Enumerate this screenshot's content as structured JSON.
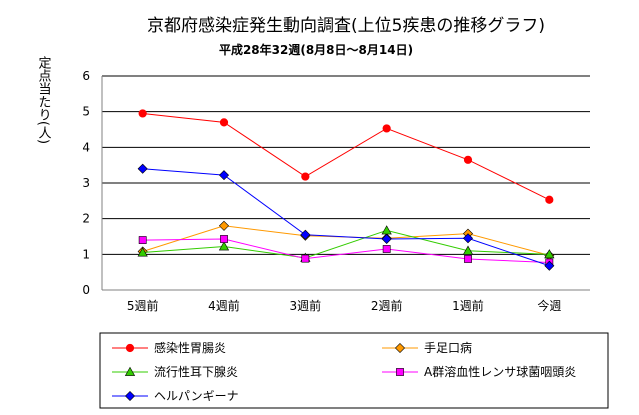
{
  "chart_data": {
    "type": "line",
    "title": "京都府感染症発生動向調査(上位5疾患の推移グラフ)",
    "subtitle": "平成28年32週(8月8日～8月14日)",
    "ylabel": "定点当たり(人)",
    "xlabel": "",
    "categories": [
      "5週前",
      "4週前",
      "3週前",
      "2週前",
      "1週前",
      "今週"
    ],
    "ylim": [
      0,
      6
    ],
    "yticks": [
      0,
      1,
      2,
      3,
      4,
      5,
      6
    ],
    "grid": "horizontal",
    "legend_position": "bottom",
    "series": [
      {
        "name": "感染性胃腸炎",
        "color": "#ff0000",
        "marker": "circle",
        "values": [
          4.95,
          4.7,
          3.18,
          4.53,
          3.65,
          2.53
        ]
      },
      {
        "name": "手足口病",
        "color": "#ff9900",
        "marker": "diamond",
        "values": [
          1.08,
          1.8,
          1.52,
          1.45,
          1.58,
          0.97
        ]
      },
      {
        "name": "流行性耳下腺炎",
        "color": "#33cc00",
        "marker": "triangle",
        "values": [
          1.05,
          1.22,
          0.9,
          1.67,
          1.1,
          1.0
        ]
      },
      {
        "name": "A群溶血性レンサ球菌咽頭炎",
        "color": "#ff00ff",
        "marker": "square",
        "values": [
          1.4,
          1.43,
          0.88,
          1.15,
          0.87,
          0.77
        ]
      },
      {
        "name": "ヘルパンギーナ",
        "color": "#0000ff",
        "marker": "diamond",
        "values": [
          3.4,
          3.22,
          1.55,
          1.43,
          1.45,
          0.68
        ]
      }
    ]
  }
}
